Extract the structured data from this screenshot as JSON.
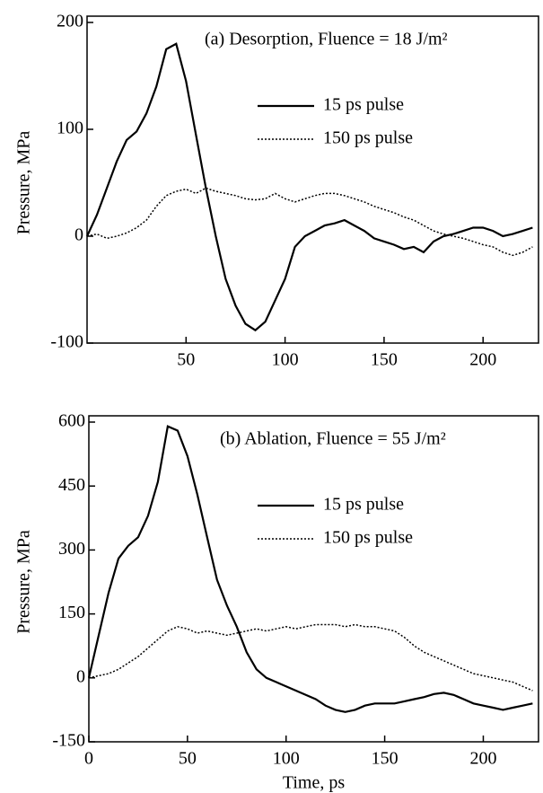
{
  "chart_data": [
    {
      "type": "line",
      "annotation": "(a)  Desorption,  Fluence = 18 J/m²",
      "ylabel": "Pressure, MPa",
      "x": [
        0,
        5,
        10,
        15,
        20,
        25,
        30,
        35,
        40,
        45,
        50,
        55,
        60,
        65,
        70,
        75,
        80,
        85,
        90,
        95,
        100,
        105,
        110,
        115,
        120,
        125,
        130,
        135,
        140,
        145,
        150,
        155,
        160,
        165,
        170,
        175,
        180,
        185,
        190,
        195,
        200,
        205,
        210,
        215,
        220,
        225
      ],
      "series": [
        {
          "name": "15 ps pulse",
          "color": "#000000",
          "style": "solid",
          "values": [
            0,
            20,
            45,
            70,
            90,
            98,
            115,
            140,
            175,
            180,
            145,
            95,
            45,
            0,
            -40,
            -65,
            -82,
            -88,
            -80,
            -60,
            -40,
            -10,
            0,
            5,
            10,
            12,
            15,
            10,
            5,
            -2,
            -5,
            -8,
            -12,
            -10,
            -15,
            -5,
            0,
            2,
            5,
            8,
            8,
            5,
            0,
            2,
            5,
            8
          ]
        },
        {
          "name": "150 ps pulse",
          "color": "#000000",
          "style": "dotted",
          "values": [
            0,
            2,
            -2,
            0,
            3,
            8,
            15,
            28,
            38,
            42,
            44,
            40,
            45,
            42,
            40,
            38,
            35,
            34,
            35,
            40,
            35,
            32,
            35,
            38,
            40,
            40,
            38,
            35,
            32,
            28,
            25,
            22,
            18,
            15,
            10,
            5,
            2,
            0,
            -2,
            -5,
            -8,
            -10,
            -15,
            -18,
            -15,
            -10
          ]
        }
      ],
      "xlim": [
        0,
        228
      ],
      "xticks": [
        50,
        100,
        150,
        200
      ],
      "ylim": [
        -100,
        200
      ],
      "yticks": [
        -100,
        0,
        100,
        200
      ]
    },
    {
      "type": "line",
      "annotation": "(b)  Ablation,  Fluence = 55 J/m²",
      "ylabel": "Pressure, MPa",
      "xlabel": "Time, ps",
      "x": [
        0,
        5,
        10,
        15,
        20,
        25,
        30,
        35,
        40,
        45,
        50,
        55,
        60,
        65,
        70,
        75,
        80,
        85,
        90,
        95,
        100,
        105,
        110,
        115,
        120,
        125,
        130,
        135,
        140,
        145,
        150,
        155,
        160,
        165,
        170,
        175,
        180,
        185,
        190,
        195,
        200,
        205,
        210,
        215,
        220,
        225
      ],
      "series": [
        {
          "name": "15 ps pulse",
          "color": "#000000",
          "style": "solid",
          "values": [
            0,
            100,
            200,
            280,
            310,
            330,
            380,
            460,
            590,
            580,
            520,
            430,
            330,
            230,
            170,
            120,
            60,
            20,
            0,
            -10,
            -20,
            -30,
            -40,
            -50,
            -65,
            -75,
            -80,
            -75,
            -65,
            -60,
            -60,
            -60,
            -55,
            -50,
            -45,
            -38,
            -35,
            -40,
            -50,
            -60,
            -65,
            -70,
            -75,
            -70,
            -65,
            -60
          ]
        },
        {
          "name": "150 ps pulse",
          "color": "#000000",
          "style": "dotted",
          "values": [
            0,
            5,
            10,
            20,
            35,
            50,
            70,
            90,
            110,
            120,
            115,
            105,
            110,
            105,
            100,
            105,
            110,
            115,
            110,
            115,
            120,
            115,
            120,
            125,
            125,
            125,
            120,
            125,
            120,
            120,
            115,
            110,
            95,
            75,
            60,
            50,
            40,
            30,
            20,
            10,
            5,
            0,
            -5,
            -10,
            -20,
            -30
          ]
        }
      ],
      "xlim": [
        0,
        228
      ],
      "xticks": [
        0,
        50,
        100,
        150,
        200
      ],
      "ylim": [
        -150,
        600
      ],
      "yticks": [
        -150,
        0,
        150,
        300,
        450,
        600
      ]
    }
  ]
}
